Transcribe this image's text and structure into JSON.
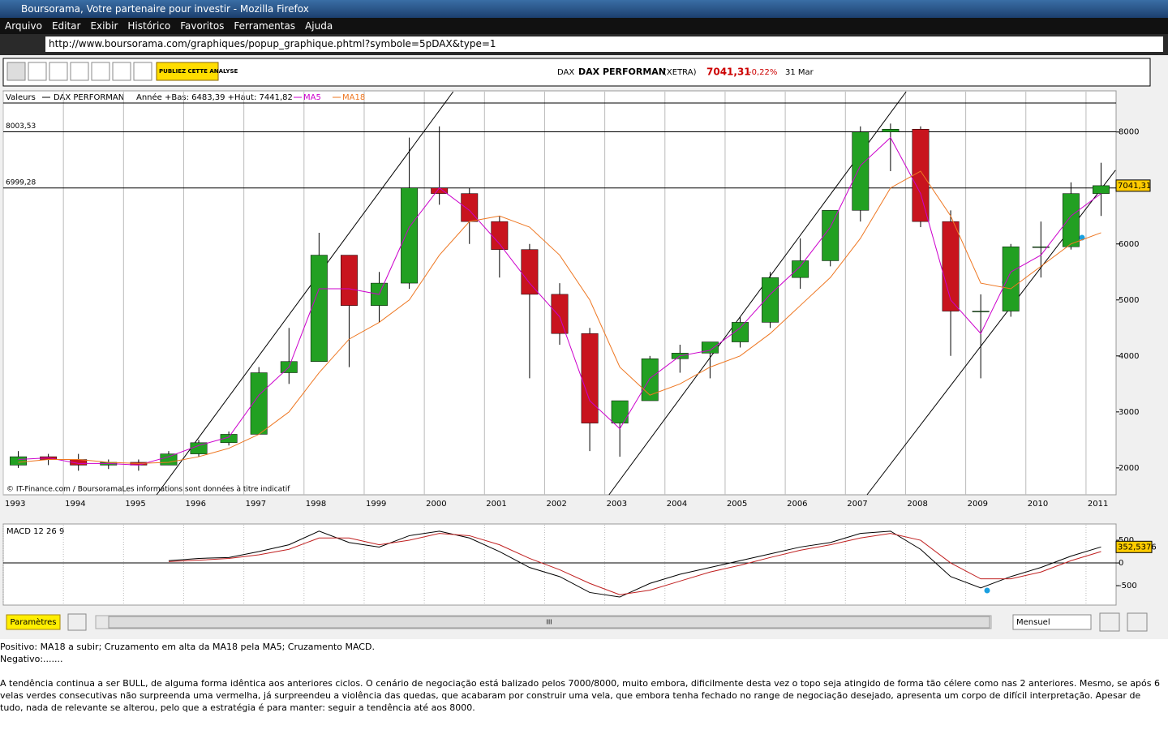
{
  "window": {
    "title": "Boursorama, Votre partenaire pour investir - Mozilla Firefox",
    "menu": [
      "Arquivo",
      "Editar",
      "Exibir",
      "Histórico",
      "Favoritos",
      "Ferramentas",
      "Ajuda"
    ],
    "url": "http://www.boursorama.com/graphiques/popup_graphique.phtml?symbole=5pDAX&type=1"
  },
  "toolbar": {
    "publish": "PUBLIEZ CETTE ANALYSE"
  },
  "header": {
    "market": "DAX",
    "name": "DAX PERFORMAN",
    "exchange": "(XETRA)",
    "price": "7041,31",
    "change": "-0,22%",
    "date": "31 Mar"
  },
  "legend": {
    "label": "Valeurs",
    "name": "DAX PERFORMAN",
    "range": "Année +Bas: 6483,39 +Haut: 7441,82"
  },
  "chart_data": [
    {
      "type": "candlestick",
      "credit": "© IT-Finance.com / BoursoramaLes informations sont données à titre indicatif",
      "xlim": [
        1993,
        2011.5
      ],
      "xticks": [
        1993,
        1994,
        1995,
        1996,
        1997,
        1998,
        1999,
        2000,
        2001,
        2002,
        2003,
        2004,
        2005,
        2006,
        2007,
        2008,
        2009,
        2010,
        2011
      ],
      "ylim": [
        1520,
        8720
      ],
      "yticks": [
        2000,
        3000,
        4000,
        5000,
        6000,
        7000,
        8000
      ],
      "grid": true,
      "up_color": "#22a022",
      "down_color": "#c8141e",
      "open": [
        2050,
        2200,
        2150,
        2050,
        2100,
        2050,
        2250,
        2450,
        2600,
        3700,
        3900,
        5800,
        4900,
        5300,
        7000,
        6900,
        6400,
        5900,
        5100,
        4400,
        2800,
        3200,
        3950,
        4050,
        4250,
        4600,
        5400,
        5700,
        6600,
        8000,
        8050,
        6400,
        4800,
        4800,
        5950,
        5950,
        6900
      ],
      "high": [
        2300,
        2250,
        2250,
        2150,
        2150,
        2300,
        2500,
        2650,
        3800,
        4500,
        6200,
        5800,
        5500,
        7900,
        8100,
        7000,
        6500,
        6000,
        5300,
        4500,
        3200,
        4000,
        4200,
        4250,
        4700,
        5500,
        6100,
        6600,
        8100,
        8150,
        8100,
        6600,
        5100,
        6000,
        6400,
        7100,
        7450
      ],
      "low": [
        2000,
        2050,
        1950,
        1980,
        1950,
        2050,
        2200,
        2400,
        2600,
        3500,
        3900,
        3800,
        4600,
        5200,
        6700,
        6000,
        5400,
        3600,
        4200,
        2300,
        2200,
        3200,
        3700,
        3600,
        4150,
        4500,
        5200,
        5600,
        6400,
        7300,
        6300,
        4000,
        3600,
        4700,
        5400,
        5900,
        6500
      ],
      "close": [
        2200,
        2150,
        2050,
        2100,
        2050,
        2250,
        2450,
        2600,
        3700,
        3900,
        5800,
        4900,
        5300,
        7000,
        6900,
        6400,
        5900,
        5100,
        4400,
        2800,
        3200,
        3950,
        4050,
        4250,
        4600,
        5400,
        5700,
        6600,
        8000,
        8050,
        6400,
        4800,
        4800,
        5950,
        5950,
        6900,
        7041.31
      ],
      "last": {
        "value": 7041.31,
        "label": "7041,31"
      },
      "hlines": [
        {
          "value": 8003.53,
          "label": "8003,53"
        },
        {
          "value": 6999.28,
          "label": "6999,28"
        }
      ],
      "trendlines": [
        [
          [
            1995.55,
            1520
          ],
          [
            2000.48,
            8720
          ]
        ],
        [
          [
            2003.07,
            1520
          ],
          [
            2008.01,
            8720
          ]
        ],
        [
          [
            2007.36,
            1520
          ],
          [
            2011.49,
            7317
          ]
        ]
      ],
      "series": [
        {
          "name": "MA5",
          "color": "#cc00cc",
          "values": [
            2150,
            2180,
            2080,
            2080,
            2050,
            2200,
            2400,
            2550,
            3300,
            3800,
            5200,
            5200,
            5100,
            6300,
            7000,
            6600,
            6000,
            5300,
            4700,
            3200,
            2700,
            3600,
            4000,
            4100,
            4500,
            5100,
            5600,
            6300,
            7400,
            7900,
            6900,
            5000,
            4400,
            5500,
            5800,
            6500,
            6900
          ]
        },
        {
          "name": "MA18",
          "color": "#ee7722",
          "values": [
            2100,
            2150,
            2150,
            2100,
            2080,
            2100,
            2200,
            2350,
            2600,
            3000,
            3700,
            4300,
            4600,
            5000,
            5800,
            6400,
            6500,
            6300,
            5800,
            5000,
            3800,
            3300,
            3500,
            3800,
            4000,
            4400,
            4900,
            5400,
            6100,
            7000,
            7300,
            6500,
            5300,
            5200,
            5600,
            6000,
            6200
          ]
        }
      ]
    },
    {
      "type": "line",
      "title": "MACD 12 26 9",
      "ylim": [
        -910,
        840
      ],
      "yticks": [
        500,
        0,
        -500
      ],
      "last": {
        "value": 352.5376,
        "label": "352,5376"
      },
      "series": [
        {
          "color": "#000000",
          "values": [
            null,
            null,
            null,
            null,
            null,
            50,
            100,
            120,
            250,
            400,
            700,
            450,
            350,
            600,
            700,
            550,
            250,
            -100,
            -300,
            -650,
            -750,
            -450,
            -250,
            -100,
            50,
            200,
            350,
            450,
            650,
            700,
            300,
            -300,
            -550,
            -300,
            -100,
            150,
            352.5376
          ]
        },
        {
          "color": "#c02020",
          "values": [
            null,
            null,
            null,
            null,
            null,
            30,
            60,
            100,
            180,
            300,
            550,
            550,
            400,
            500,
            650,
            600,
            400,
            100,
            -150,
            -450,
            -700,
            -600,
            -400,
            -200,
            -50,
            120,
            280,
            400,
            550,
            650,
            500,
            0,
            -350,
            -350,
            -200,
            50,
            250
          ]
        }
      ]
    }
  ],
  "controls": {
    "params": "Paramètres",
    "period": "Mensuel",
    "scroll": "III"
  },
  "notes": [
    "Positivo: MA18 a subir; Cruzamento em alta da MA18 pela MA5; Cruzamento MACD.",
    "Negativo:.......",
    "A tendência continua a ser BULL, de alguma forma idêntica aos anteriores ciclos. O cenário de negociação está balizado pelos 7000/8000, muito embora, dificilmente desta vez o topo seja atingido de forma tão célere como nas 2 anteriores. Mesmo, se após 6 velas verdes consecutivas não surpreenda uma vermelha, já surpreendeu a violência das quedas, que acabaram por construir uma vela, que embora tenha fechado no range de negociação desejado, apresenta um corpo de difícil interpretação.  Apesar de tudo, nada de relevante se alterou, pelo que a estratégia é para manter: seguir a tendência até aos 8000."
  ]
}
